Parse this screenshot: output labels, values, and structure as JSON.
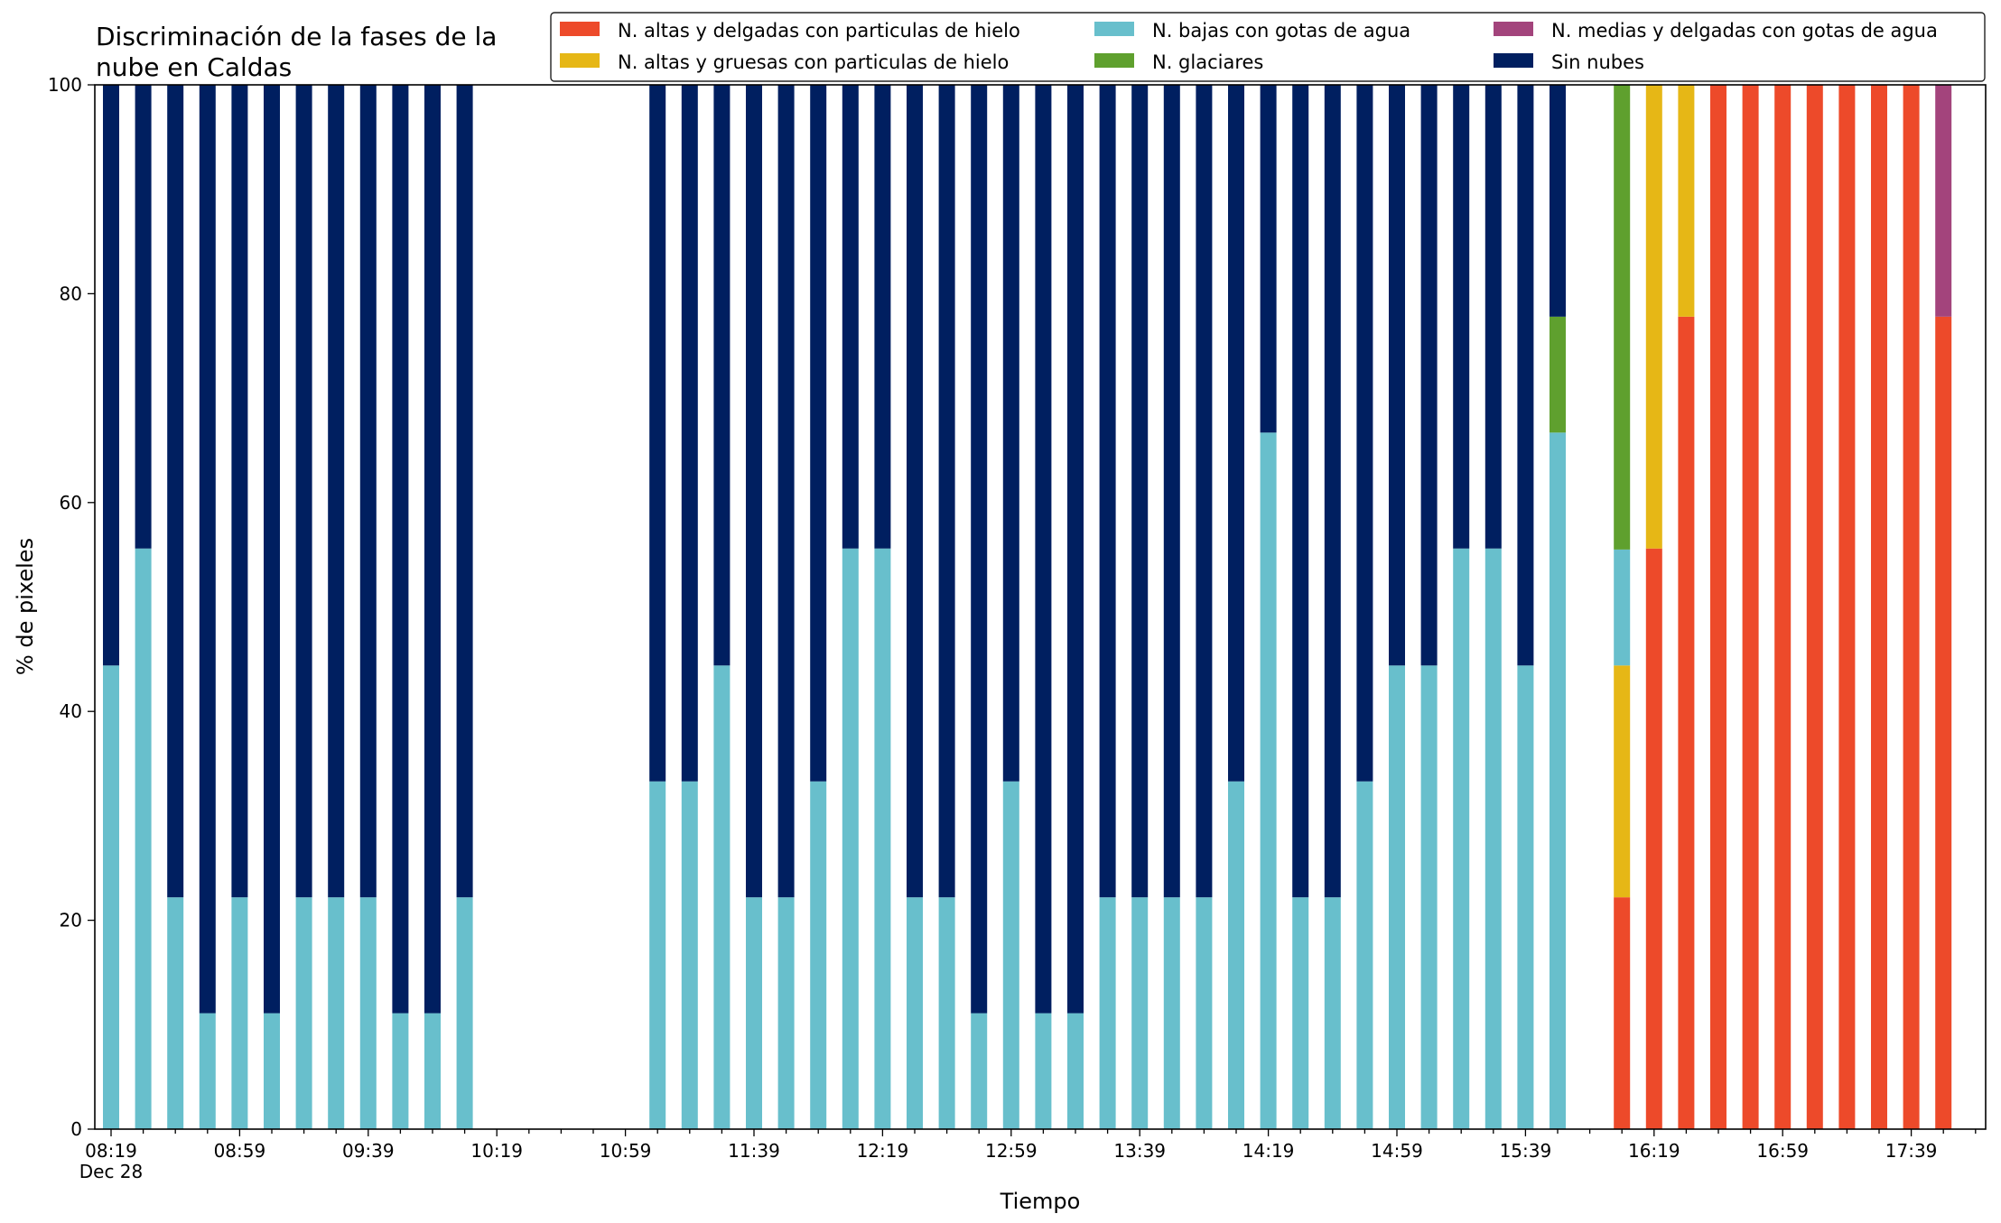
{
  "chart_data": {
    "type": "bar",
    "stacked": true,
    "title_lines": [
      "Discriminación de la fases de la",
      "nube en Caldas"
    ],
    "xlabel": "Tiempo",
    "ylabel": "% de pixeles",
    "ylim": [
      0,
      100
    ],
    "yticks": [
      "0",
      "20",
      "40",
      "60",
      "80",
      "100"
    ],
    "xtick_labels": [
      "08:19",
      "08:59",
      "09:39",
      "10:19",
      "10:59",
      "11:39",
      "12:19",
      "12:59",
      "13:39",
      "14:19",
      "14:59",
      "15:39",
      "16:19",
      "16:59",
      "17:39"
    ],
    "x_date_label": "Dec 28",
    "slot_start": "08:19",
    "slot_minutes": 10,
    "grid": false,
    "legend_position": "top-right",
    "series": [
      {
        "name": "N. altas y delgadas con particulas de hielo",
        "color": "#ed4a2a"
      },
      {
        "name": "N. altas y gruesas con particulas de hielo",
        "color": "#e6b716"
      },
      {
        "name": "N. bajas con gotas de agua",
        "color": "#68bfcc"
      },
      {
        "name": "N. glaciares",
        "color": "#5fa02e"
      },
      {
        "name": "N. medias y delgadas con gotas de agua",
        "color": "#a3447c"
      },
      {
        "name": "Sin nubes",
        "color": "#001f60"
      }
    ],
    "bars": [
      {
        "time": "08:19",
        "values": [
          0,
          0,
          44.4,
          0,
          0,
          55.6
        ]
      },
      {
        "time": "08:29",
        "values": [
          0,
          0,
          55.6,
          0,
          0,
          44.4
        ]
      },
      {
        "time": "08:39",
        "values": [
          0,
          0,
          22.2,
          0,
          0,
          77.8
        ]
      },
      {
        "time": "08:49",
        "values": [
          0,
          0,
          11.1,
          0,
          0,
          88.9
        ]
      },
      {
        "time": "08:59",
        "values": [
          0,
          0,
          22.2,
          0,
          0,
          77.8
        ]
      },
      {
        "time": "09:09",
        "values": [
          0,
          0,
          11.1,
          0,
          0,
          88.9
        ]
      },
      {
        "time": "09:19",
        "values": [
          0,
          0,
          22.2,
          0,
          0,
          77.8
        ]
      },
      {
        "time": "09:29",
        "values": [
          0,
          0,
          22.2,
          0,
          0,
          77.8
        ]
      },
      {
        "time": "09:39",
        "values": [
          0,
          0,
          22.2,
          0,
          0,
          77.8
        ]
      },
      {
        "time": "09:49",
        "values": [
          0,
          0,
          11.1,
          0,
          0,
          88.9
        ]
      },
      {
        "time": "09:59",
        "values": [
          0,
          0,
          11.1,
          0,
          0,
          88.9
        ]
      },
      {
        "time": "10:09",
        "values": [
          0,
          0,
          22.2,
          0,
          0,
          77.8
        ]
      },
      {
        "time": "11:09",
        "values": [
          0,
          0,
          33.3,
          0,
          0,
          66.7
        ]
      },
      {
        "time": "11:19",
        "values": [
          0,
          0,
          33.3,
          0,
          0,
          66.7
        ]
      },
      {
        "time": "11:29",
        "values": [
          0,
          0,
          44.4,
          0,
          0,
          55.6
        ]
      },
      {
        "time": "11:39",
        "values": [
          0,
          0,
          22.2,
          0,
          0,
          77.8
        ]
      },
      {
        "time": "11:49",
        "values": [
          0,
          0,
          22.2,
          0,
          0,
          77.8
        ]
      },
      {
        "time": "11:59",
        "values": [
          0,
          0,
          33.3,
          0,
          0,
          66.7
        ]
      },
      {
        "time": "12:09",
        "values": [
          0,
          0,
          55.6,
          0,
          0,
          44.4
        ]
      },
      {
        "time": "12:19",
        "values": [
          0,
          0,
          55.6,
          0,
          0,
          44.4
        ]
      },
      {
        "time": "12:29",
        "values": [
          0,
          0,
          22.2,
          0,
          0,
          77.8
        ]
      },
      {
        "time": "12:39",
        "values": [
          0,
          0,
          22.2,
          0,
          0,
          77.8
        ]
      },
      {
        "time": "12:49",
        "values": [
          0,
          0,
          11.1,
          0,
          0,
          88.9
        ]
      },
      {
        "time": "12:59",
        "values": [
          0,
          0,
          33.3,
          0,
          0,
          66.7
        ]
      },
      {
        "time": "13:09",
        "values": [
          0,
          0,
          11.1,
          0,
          0,
          88.9
        ]
      },
      {
        "time": "13:19",
        "values": [
          0,
          0,
          11.1,
          0,
          0,
          88.9
        ]
      },
      {
        "time": "13:29",
        "values": [
          0,
          0,
          22.2,
          0,
          0,
          77.8
        ]
      },
      {
        "time": "13:39",
        "values": [
          0,
          0,
          22.2,
          0,
          0,
          77.8
        ]
      },
      {
        "time": "13:49",
        "values": [
          0,
          0,
          22.2,
          0,
          0,
          77.8
        ]
      },
      {
        "time": "13:59",
        "values": [
          0,
          0,
          22.2,
          0,
          0,
          77.8
        ]
      },
      {
        "time": "14:09",
        "values": [
          0,
          0,
          33.3,
          0,
          0,
          66.7
        ]
      },
      {
        "time": "14:19",
        "values": [
          0,
          0,
          66.7,
          0,
          0,
          33.3
        ]
      },
      {
        "time": "14:29",
        "values": [
          0,
          0,
          22.2,
          0,
          0,
          77.8
        ]
      },
      {
        "time": "14:39",
        "values": [
          0,
          0,
          22.2,
          0,
          0,
          77.8
        ]
      },
      {
        "time": "14:49",
        "values": [
          0,
          0,
          33.3,
          0,
          0,
          66.7
        ]
      },
      {
        "time": "14:59",
        "values": [
          0,
          0,
          44.4,
          0,
          0,
          55.6
        ]
      },
      {
        "time": "15:09",
        "values": [
          0,
          0,
          44.4,
          0,
          0,
          55.6
        ]
      },
      {
        "time": "15:19",
        "values": [
          0,
          0,
          55.6,
          0,
          0,
          44.4
        ]
      },
      {
        "time": "15:29",
        "values": [
          0,
          0,
          55.6,
          0,
          0,
          44.4
        ]
      },
      {
        "time": "15:39",
        "values": [
          0,
          0,
          44.4,
          0,
          0,
          55.6
        ]
      },
      {
        "time": "15:49",
        "values": [
          0,
          0,
          66.7,
          11.1,
          0,
          22.2
        ]
      },
      {
        "time": "16:09",
        "values": [
          22.2,
          22.2,
          11.1,
          44.5,
          0,
          0
        ]
      },
      {
        "time": "16:19",
        "values": [
          55.6,
          44.4,
          0,
          0,
          0,
          0
        ]
      },
      {
        "time": "16:29",
        "values": [
          77.8,
          22.2,
          0,
          0,
          0,
          0
        ]
      },
      {
        "time": "16:39",
        "values": [
          100,
          0,
          0,
          0,
          0,
          0
        ]
      },
      {
        "time": "16:49",
        "values": [
          100,
          0,
          0,
          0,
          0,
          0
        ]
      },
      {
        "time": "16:59",
        "values": [
          100,
          0,
          0,
          0,
          0,
          0
        ]
      },
      {
        "time": "17:09",
        "values": [
          100,
          0,
          0,
          0,
          0,
          0
        ]
      },
      {
        "time": "17:19",
        "values": [
          100,
          0,
          0,
          0,
          0,
          0
        ]
      },
      {
        "time": "17:29",
        "values": [
          100,
          0,
          0,
          0,
          0,
          0
        ]
      },
      {
        "time": "17:39",
        "values": [
          100,
          0,
          0,
          0,
          0,
          0
        ]
      },
      {
        "time": "17:49",
        "values": [
          77.8,
          0,
          0,
          0,
          22.2,
          0
        ]
      }
    ]
  }
}
